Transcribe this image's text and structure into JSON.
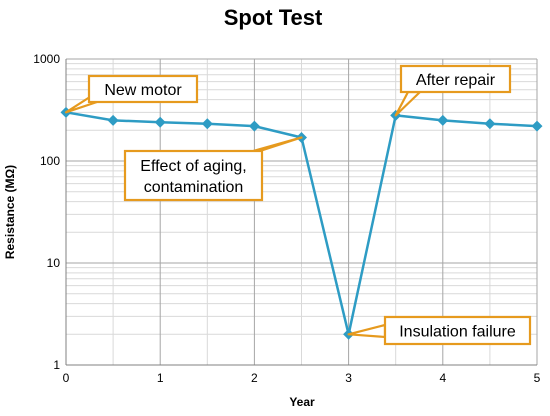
{
  "colors": {
    "series": "#2e9cc4",
    "callout_border": "#e69a1e"
  },
  "chart_data": {
    "type": "line",
    "title": "Spot Test",
    "xlabel": "Year",
    "ylabel": "Resistance (MΩ)",
    "xlim": [
      0,
      5
    ],
    "ylim": [
      1,
      1000
    ],
    "yscale": "log",
    "grid": true,
    "x_ticks": [
      "0",
      "1",
      "2",
      "3",
      "4",
      "5"
    ],
    "y_ticks": [
      "1",
      "10",
      "100",
      "1000"
    ],
    "series": [
      {
        "x": [
          0,
          0.5,
          1,
          1.5,
          2,
          2.5,
          3,
          3.5,
          4,
          4.5,
          5
        ],
        "y": [
          300,
          250,
          240,
          232,
          220,
          170,
          2,
          280,
          250,
          232,
          220
        ]
      }
    ],
    "annotations": [
      {
        "text": "New motor",
        "x": 0,
        "y": 300
      },
      {
        "text": "Effect of aging, contamination",
        "line1": "Effect of aging,",
        "line2": "contamination",
        "x": 2.5,
        "y": 170
      },
      {
        "text": "Insulation failure",
        "x": 3,
        "y": 2
      },
      {
        "text": "After repair",
        "x": 3.5,
        "y": 280
      }
    ]
  }
}
